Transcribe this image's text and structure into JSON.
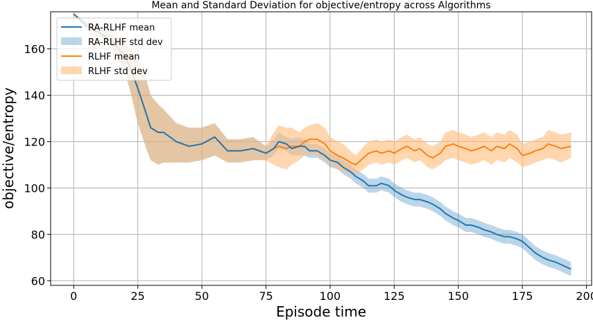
{
  "chart_data": {
    "type": "line",
    "title": "Mean and Standard Deviation for objective/entropy across Algorithms",
    "xlabel": "Episode time",
    "ylabel": "objective/entropy",
    "xlim": [
      -9,
      202
    ],
    "ylim": [
      58,
      176
    ],
    "xticks": [
      0,
      25,
      50,
      75,
      100,
      125,
      150,
      175,
      200
    ],
    "yticks": [
      60,
      80,
      100,
      120,
      140,
      160
    ],
    "grid": true,
    "legend_position": "top-left",
    "series": [
      {
        "name": "RA-RLHF mean",
        "band_name": "RA-RLHF std dev",
        "color": "#1f77b4",
        "band_color": "#1f77b4",
        "x": [
          0,
          5,
          10,
          15,
          20,
          22,
          25,
          28,
          30,
          33,
          35,
          40,
          45,
          50,
          55,
          60,
          65,
          70,
          75,
          78,
          80,
          83,
          85,
          88,
          90,
          92,
          95,
          98,
          100,
          103,
          105,
          108,
          110,
          113,
          115,
          118,
          120,
          123,
          125,
          128,
          130,
          133,
          135,
          138,
          140,
          143,
          145,
          148,
          150,
          153,
          155,
          158,
          160,
          163,
          165,
          168,
          170,
          173,
          175,
          178,
          180,
          183,
          185,
          188,
          190,
          194
        ],
        "mean": [
          175,
          170,
          167,
          163,
          157,
          152,
          143,
          133,
          126,
          124,
          124,
          120,
          118,
          119,
          122,
          116,
          116,
          117,
          115,
          117,
          120,
          119,
          117,
          118,
          118,
          116,
          116,
          114,
          112,
          111,
          109,
          107,
          105,
          103,
          101,
          101,
          102,
          101,
          99,
          97,
          96,
          95,
          95,
          94,
          93,
          91,
          89,
          87,
          86,
          84,
          84,
          83,
          82,
          81,
          80,
          79,
          79,
          78,
          77,
          74,
          72,
          70,
          69,
          68,
          67,
          65
        ],
        "lower": [
          175,
          168,
          165,
          160,
          150,
          142,
          128,
          118,
          112,
          110,
          111,
          111,
          111,
          112,
          114,
          111,
          111,
          112,
          112,
          114,
          117,
          116,
          114,
          114,
          114,
          113,
          113,
          111,
          109,
          108,
          106,
          104,
          102,
          100,
          98,
          98,
          99,
          98,
          96,
          94,
          93,
          92,
          92,
          91,
          90,
          88,
          86,
          84,
          83,
          81,
          81,
          80,
          79,
          78,
          77,
          76,
          76,
          75,
          74,
          71,
          69,
          67,
          66,
          65,
          64,
          62
        ],
        "upper": [
          175,
          172,
          170,
          167,
          163,
          160,
          156,
          148,
          140,
          136,
          134,
          128,
          126,
          126,
          128,
          121,
          121,
          122,
          118,
          121,
          124,
          122,
          121,
          122,
          121,
          119,
          119,
          117,
          115,
          114,
          112,
          110,
          108,
          106,
          104,
          104,
          105,
          104,
          102,
          100,
          99,
          98,
          98,
          97,
          96,
          94,
          92,
          90,
          89,
          87,
          87,
          86,
          85,
          84,
          83,
          82,
          82,
          81,
          80,
          77,
          75,
          73,
          72,
          71,
          70,
          68
        ]
      },
      {
        "name": "RLHF mean",
        "band_name": "RLHF std dev",
        "color": "#ff7f0e",
        "band_color": "#ffbb78",
        "x": [
          0,
          5,
          10,
          15,
          20,
          22,
          25,
          28,
          30,
          33,
          35,
          40,
          45,
          50,
          55,
          60,
          65,
          70,
          75,
          78,
          80,
          83,
          85,
          88,
          90,
          92,
          95,
          98,
          100,
          103,
          105,
          108,
          110,
          113,
          115,
          118,
          120,
          123,
          125,
          128,
          130,
          133,
          135,
          138,
          140,
          143,
          145,
          148,
          150,
          153,
          155,
          158,
          160,
          163,
          165,
          168,
          170,
          173,
          175,
          178,
          180,
          183,
          185,
          188,
          190,
          194
        ],
        "mean": [
          175,
          170,
          167,
          163,
          157,
          152,
          143,
          133,
          126,
          124,
          124,
          120,
          118,
          119,
          122,
          116,
          116,
          117,
          115,
          117,
          118,
          117,
          118,
          118,
          120,
          121,
          121,
          119,
          116,
          114,
          113,
          111,
          110,
          113,
          115,
          116,
          115,
          116,
          115,
          117,
          118,
          116,
          117,
          114,
          113,
          115,
          118,
          119,
          118,
          117,
          116,
          117,
          118,
          116,
          118,
          117,
          119,
          117,
          114,
          115,
          116,
          117,
          119,
          118,
          117,
          118
        ],
        "lower": [
          175,
          168,
          165,
          160,
          150,
          142,
          128,
          118,
          112,
          110,
          111,
          111,
          111,
          112,
          114,
          111,
          111,
          112,
          112,
          110,
          109,
          108,
          110,
          112,
          114,
          115,
          114,
          112,
          110,
          108,
          107,
          106,
          106,
          108,
          110,
          111,
          110,
          111,
          110,
          112,
          113,
          111,
          112,
          109,
          108,
          110,
          112,
          113,
          112,
          111,
          110,
          111,
          112,
          110,
          112,
          111,
          113,
          111,
          109,
          110,
          111,
          112,
          113,
          112,
          111,
          113
        ],
        "upper": [
          175,
          172,
          170,
          167,
          163,
          160,
          156,
          148,
          140,
          136,
          134,
          128,
          126,
          126,
          128,
          121,
          121,
          122,
          118,
          124,
          127,
          126,
          126,
          124,
          126,
          127,
          128,
          126,
          122,
          120,
          119,
          116,
          114,
          118,
          120,
          121,
          120,
          121,
          120,
          122,
          123,
          121,
          122,
          119,
          118,
          120,
          124,
          125,
          124,
          123,
          122,
          123,
          124,
          122,
          124,
          123,
          125,
          123,
          119,
          120,
          121,
          122,
          125,
          124,
          123,
          124
        ]
      }
    ]
  }
}
